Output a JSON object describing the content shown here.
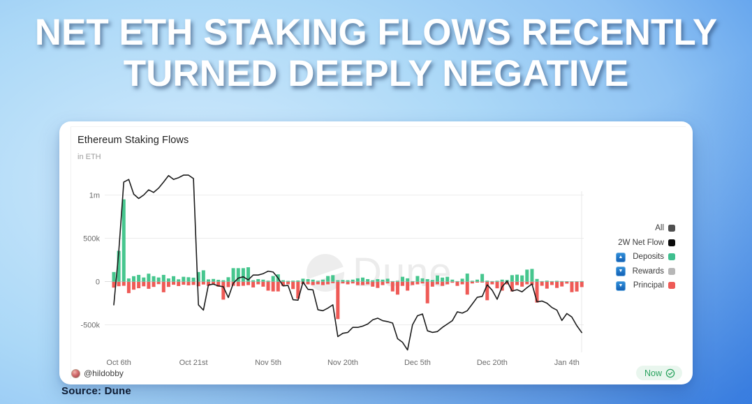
{
  "headline": {
    "line1": "NET ETH STAKING FLOWS RECENTLY",
    "line2": "TURNED DEEPLY NEGATIVE"
  },
  "source_note": "Source: Dune",
  "card": {
    "chart_title": "Ethereum Staking Flows",
    "chart_subtitle": "in ETH",
    "watermark": "Dune",
    "author": "@hildobby",
    "refresh_badge": "Now",
    "legend": [
      {
        "label": "All",
        "swatch": "#4f4f4f",
        "arrow": null
      },
      {
        "label": "2W Net Flow",
        "swatch": "#0a0a0a",
        "arrow": null
      },
      {
        "label": "Deposits",
        "swatch": "#3fbf8f",
        "arrow": "up"
      },
      {
        "label": "Rewards",
        "swatch": "#b7b7b7",
        "arrow": "down"
      },
      {
        "label": "Principal",
        "swatch": "#ee5a56",
        "arrow": "down"
      }
    ]
  },
  "chart_data": {
    "type": "bar+line",
    "title": "Ethereum Staking Flows",
    "subtitle": "in ETH",
    "unit": "ETH",
    "y_ticks": [
      {
        "label": "1m",
        "value_k": 1000
      },
      {
        "label": "500k",
        "value_k": 500
      },
      {
        "label": "0",
        "value_k": 0
      },
      {
        "label": "-500k",
        "value_k": -500
      }
    ],
    "x_ticks": [
      {
        "label": "Oct 6th",
        "day_index": 1
      },
      {
        "label": "Oct 21st",
        "day_index": 16
      },
      {
        "label": "Nov 5th",
        "day_index": 31
      },
      {
        "label": "Nov 20th",
        "day_index": 46
      },
      {
        "label": "Dec 5th",
        "day_index": 61
      },
      {
        "label": "Dec 20th",
        "day_index": 76
      },
      {
        "label": "Jan 4th",
        "day_index": 91
      }
    ],
    "ylim_k": [
      -850,
      1300
    ],
    "grid": "horizontal",
    "legend_position": "right",
    "dates": [
      "Oct 5",
      "Oct 6",
      "Oct 7",
      "Oct 8",
      "Oct 9",
      "Oct 10",
      "Oct 11",
      "Oct 12",
      "Oct 13",
      "Oct 14",
      "Oct 15",
      "Oct 16",
      "Oct 17",
      "Oct 18",
      "Oct 19",
      "Oct 20",
      "Oct 21",
      "Oct 22",
      "Oct 23",
      "Oct 24",
      "Oct 25",
      "Oct 26",
      "Oct 27",
      "Oct 28",
      "Oct 29",
      "Oct 30",
      "Oct 31",
      "Nov 1",
      "Nov 2",
      "Nov 3",
      "Nov 4",
      "Nov 5",
      "Nov 6",
      "Nov 7",
      "Nov 8",
      "Nov 9",
      "Nov 10",
      "Nov 11",
      "Nov 12",
      "Nov 13",
      "Nov 14",
      "Nov 15",
      "Nov 16",
      "Nov 17",
      "Nov 18",
      "Nov 19",
      "Nov 20",
      "Nov 21",
      "Nov 22",
      "Nov 23",
      "Nov 24",
      "Nov 25",
      "Nov 26",
      "Nov 27",
      "Nov 28",
      "Nov 29",
      "Nov 30",
      "Dec 1",
      "Dec 2",
      "Dec 3",
      "Dec 4",
      "Dec 5",
      "Dec 6",
      "Dec 7",
      "Dec 8",
      "Dec 9",
      "Dec 10",
      "Dec 11",
      "Dec 12",
      "Dec 13",
      "Dec 14",
      "Dec 15",
      "Dec 16",
      "Dec 17",
      "Dec 18",
      "Dec 19",
      "Dec 20",
      "Dec 21",
      "Dec 22",
      "Dec 23",
      "Dec 24",
      "Dec 25",
      "Dec 26",
      "Dec 27",
      "Dec 28",
      "Dec 29",
      "Dec 30",
      "Dec 31",
      "Jan 1",
      "Jan 2",
      "Jan 3",
      "Jan 4",
      "Jan 5",
      "Jan 6",
      "Jan 7"
    ],
    "series": [
      {
        "name": "2W Net Flow",
        "type": "line",
        "color": "#1b1b1b",
        "values_k": [
          -270,
          350,
          1150,
          1180,
          1010,
          960,
          1000,
          1060,
          1030,
          1080,
          1150,
          1225,
          1180,
          1200,
          1230,
          1230,
          1190,
          -270,
          -330,
          -40,
          -30,
          -50,
          -60,
          -185,
          -20,
          40,
          55,
          20,
          75,
          75,
          91,
          120,
          110,
          40,
          -50,
          -45,
          -210,
          -215,
          -5,
          -90,
          -96,
          -326,
          -337,
          -307,
          -269,
          -636,
          -598,
          -588,
          -530,
          -530,
          -515,
          -491,
          -443,
          -423,
          -452,
          -463,
          -480,
          -660,
          -703,
          -791,
          -500,
          -395,
          -375,
          -569,
          -588,
          -578,
          -530,
          -491,
          -452,
          -350,
          -365,
          -337,
          -260,
          -182,
          -172,
          -37,
          -100,
          -205,
          -60,
          5,
          -110,
          -95,
          -119,
          -70,
          -28,
          -235,
          -225,
          -250,
          -300,
          -330,
          -450,
          -370,
          -410,
          -510,
          -590
        ]
      },
      {
        "name": "Deposits",
        "type": "bar",
        "color": "#46c68e",
        "values_k": [
          110,
          355,
          950,
          36,
          62,
          77,
          47,
          91,
          62,
          47,
          77,
          36,
          62,
          26,
          55,
          50,
          45,
          110,
          130,
          25,
          30,
          20,
          15,
          50,
          155,
          155,
          155,
          165,
          15,
          28,
          22,
          10,
          64,
          83,
          15,
          8,
          10,
          12,
          33,
          28,
          22,
          9,
          22,
          64,
          74,
          15,
          18,
          15,
          22,
          37,
          46,
          28,
          15,
          28,
          22,
          33,
          5,
          9,
          55,
          37,
          5,
          64,
          37,
          28,
          18,
          70,
          46,
          55,
          22,
          5,
          33,
          92,
          9,
          22,
          88,
          10,
          5,
          9,
          22,
          18,
          74,
          80,
          71,
          138,
          146,
          30,
          5,
          10,
          5,
          8,
          5,
          4,
          3,
          3,
          5
        ]
      },
      {
        "name": "Rewards",
        "type": "bar",
        "color": "#b7b7b7",
        "values_k": [
          -4,
          -4,
          -4,
          -4,
          -4,
          -4,
          -4,
          -4,
          -4,
          -4,
          -4,
          -4,
          -4,
          -4,
          -4,
          -4,
          -4,
          -4,
          -4,
          -4,
          -4,
          -4,
          -4,
          -4,
          -4,
          -4,
          -4,
          -4,
          -4,
          -4,
          -4,
          -4,
          -4,
          -4,
          -4,
          -4,
          -4,
          -4,
          -4,
          -4,
          -4,
          -4,
          -4,
          -4,
          -4,
          -4,
          -4,
          -4,
          -4,
          -4,
          -4,
          -4,
          -4,
          -4,
          -4,
          -4,
          -4,
          -4,
          -4,
          -4,
          -4,
          -4,
          -4,
          -4,
          -4,
          -4,
          -4,
          -4,
          -4,
          -4,
          -4,
          -4,
          -4,
          -4,
          -4,
          -4,
          -4,
          -4,
          -4,
          -4,
          -4,
          -4,
          -4,
          -4,
          -4,
          -4,
          -4,
          -4,
          -4,
          -4,
          -4,
          -4,
          -4,
          -4,
          -4
        ]
      },
      {
        "name": "Principal",
        "type": "bar",
        "color": "#ee5a56",
        "values_k": [
          -66,
          -50,
          -45,
          -130,
          -90,
          -73,
          -51,
          -80,
          -58,
          -26,
          -120,
          -58,
          -33,
          -48,
          -33,
          -40,
          -35,
          -50,
          -30,
          -45,
          -30,
          -55,
          -205,
          -60,
          -45,
          -50,
          -45,
          -37,
          -64,
          -28,
          -55,
          -101,
          -110,
          -110,
          -46,
          -28,
          -83,
          -193,
          -25,
          -28,
          -37,
          -28,
          -37,
          -28,
          -15,
          -430,
          -18,
          -28,
          -18,
          -37,
          -37,
          -28,
          -55,
          -70,
          -37,
          -18,
          -110,
          -147,
          -46,
          -101,
          -37,
          -28,
          -18,
          -248,
          -55,
          -28,
          -46,
          -28,
          -10,
          -46,
          -28,
          -147,
          -18,
          -8,
          -8,
          -212,
          -28,
          -74,
          -101,
          -28,
          -110,
          -37,
          -55,
          -28,
          -37,
          -239,
          -45,
          -78,
          -36,
          -70,
          -53,
          -20,
          -119,
          -111,
          -60
        ]
      }
    ]
  },
  "layout_colors": {
    "deposit_green": "#46c68e",
    "principal_red": "#ee5a56",
    "rewards_gray": "#b7b7b7",
    "line_black": "#1b1b1b",
    "badge_green": "#29a35e"
  }
}
